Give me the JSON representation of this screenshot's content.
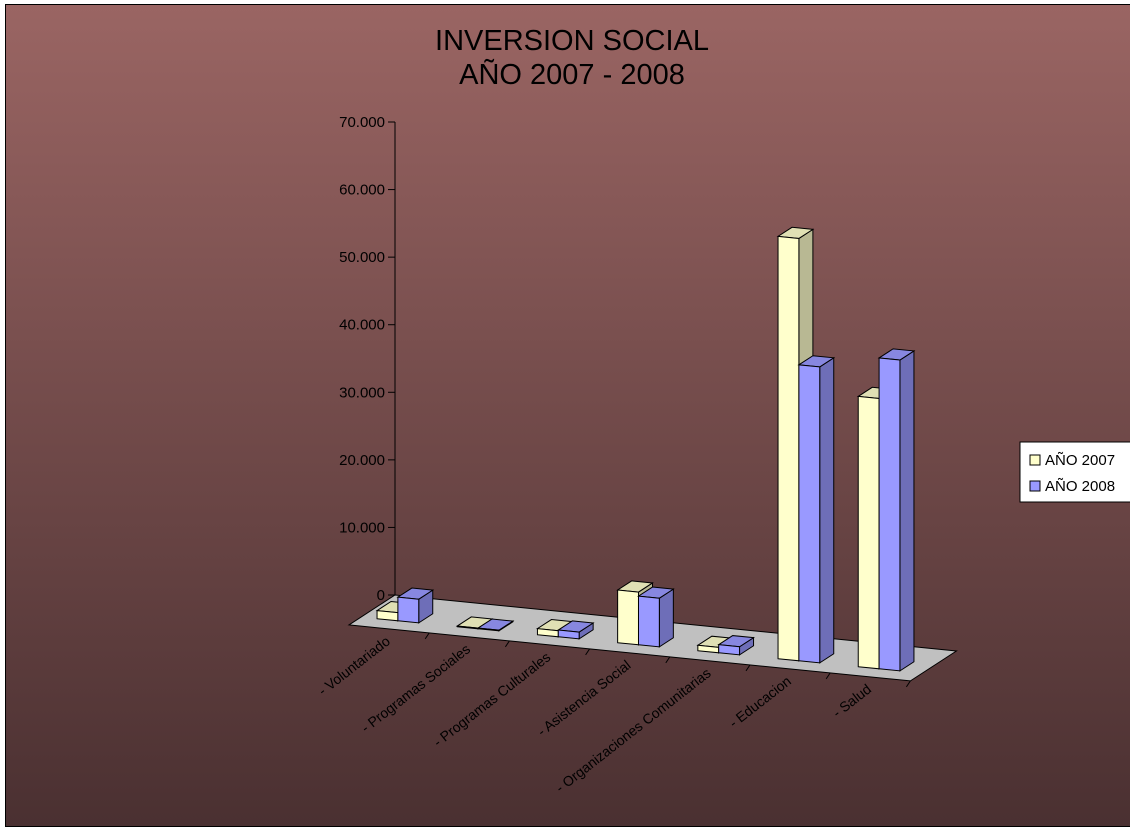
{
  "chart_data": {
    "type": "bar",
    "title": [
      "INVERSION  SOCIAL",
      "AÑO 2007  - 2008"
    ],
    "categories": [
      "- Voluntariado",
      "- Programas Sociales",
      "- Programas Culturales",
      "- Asistencia Social",
      "- Organizaciones Comunitarias",
      "- Educacion",
      "- Salud"
    ],
    "series": [
      {
        "name": "AÑO 2007",
        "values": [
          1200,
          100,
          900,
          7800,
          800,
          62500,
          40000
        ],
        "color": "#ffffcc"
      },
      {
        "name": "AÑO 2008",
        "values": [
          3500,
          100,
          1000,
          7200,
          1200,
          43800,
          46000
        ],
        "color": "#9999ff"
      }
    ],
    "ylim": [
      0,
      70000
    ],
    "yticks": [
      0,
      10000,
      20000,
      30000,
      40000,
      50000,
      60000,
      70000
    ],
    "ytick_labels": [
      "0",
      "10.000",
      "20.000",
      "30.000",
      "40.000",
      "50.000",
      "60.000",
      "70.000"
    ],
    "xlabel": "",
    "ylabel": "",
    "grid": false,
    "legend_position": "right",
    "style": "3d-clustered-column",
    "background": {
      "top": "#9a6563",
      "bottom": "#4a3031"
    },
    "floor_color": "#c0c0c0"
  }
}
